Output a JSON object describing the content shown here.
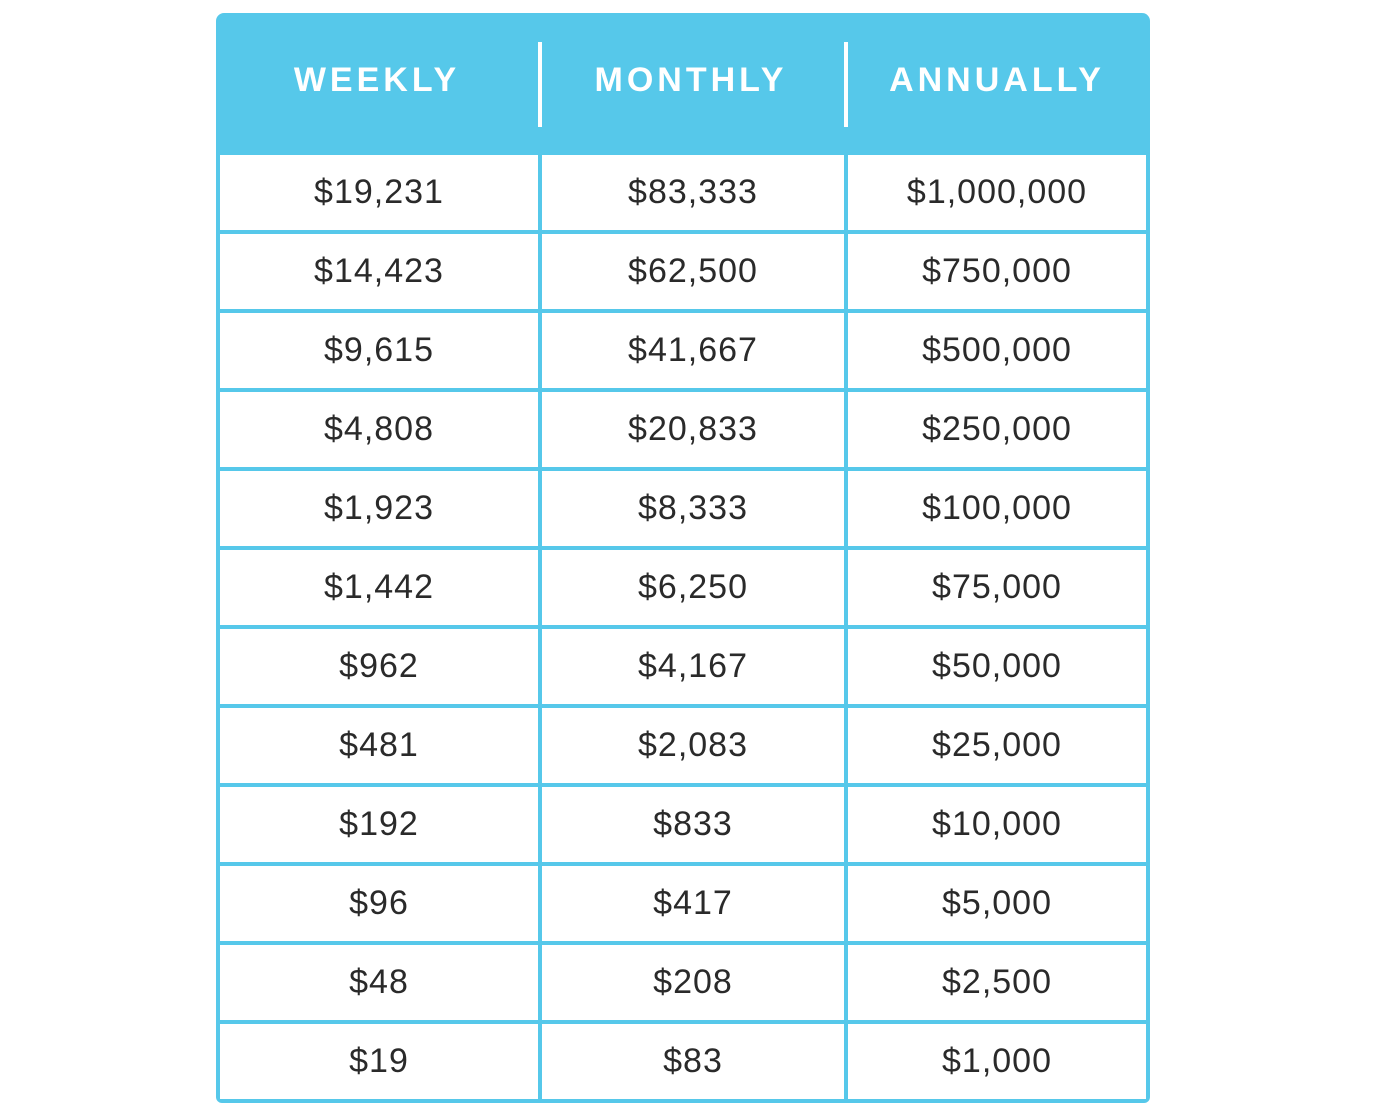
{
  "table": {
    "header": [
      "WEEKLY",
      "MONTHLY",
      "ANNUALLY"
    ],
    "rows": [
      [
        "$19,231",
        "$83,333",
        "$1,000,000"
      ],
      [
        "$14,423",
        "$62,500",
        "$750,000"
      ],
      [
        "$9,615",
        "$41,667",
        "$500,000"
      ],
      [
        "$4,808",
        "$20,833",
        "$250,000"
      ],
      [
        "$1,923",
        "$8,333",
        "$100,000"
      ],
      [
        "$1,442",
        "$6,250",
        "$75,000"
      ],
      [
        "$962",
        "$4,167",
        "$50,000"
      ],
      [
        "$481",
        "$2,083",
        "$25,000"
      ],
      [
        "$192",
        "$833",
        "$10,000"
      ],
      [
        "$96",
        "$417",
        "$5,000"
      ],
      [
        "$48",
        "$208",
        "$2,500"
      ],
      [
        "$19",
        "$83",
        "$1,000"
      ]
    ]
  }
}
